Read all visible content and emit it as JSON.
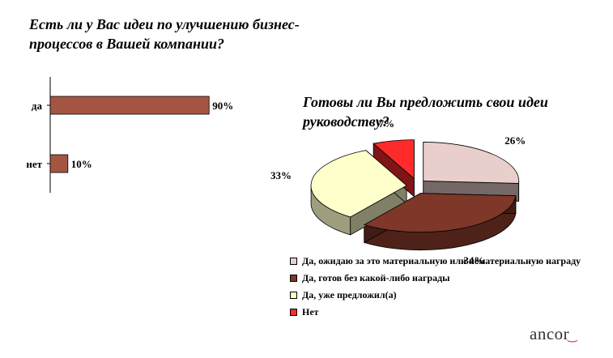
{
  "chart_data": [
    {
      "type": "bar",
      "orientation": "horizontal",
      "title": "Есть ли у Вас идеи по улучшению бизнес-процессов в Вашей компании?",
      "categories": [
        "да",
        "нет"
      ],
      "values": [
        90,
        10
      ],
      "value_labels": [
        "90%",
        "10%"
      ],
      "unit": "%",
      "xlim": [
        0,
        100
      ],
      "grid": false,
      "legend": false,
      "colors": {
        "bar": "#a45542",
        "bar_border": "#000000"
      }
    },
    {
      "type": "pie",
      "style": "3d-exploded",
      "title": "Готовы ли Вы предложить свои идеи руководству?",
      "categories": [
        "Да, ожидаю за это материальную или нематериальную награду",
        "Да, готов без какой-либо награды",
        "Да, уже предложил(а)",
        "Нет"
      ],
      "values": [
        26,
        34,
        33,
        7
      ],
      "value_labels": [
        "26%",
        "34%",
        "33%",
        "7%"
      ],
      "unit": "%",
      "legend": "bottom-left",
      "colors": [
        "#e9cfcb",
        "#7e3728",
        "#ffffcc",
        "#ff2a2a"
      ]
    }
  ],
  "branding": {
    "logo_text": "ancor",
    "logo_mark": "‿"
  }
}
